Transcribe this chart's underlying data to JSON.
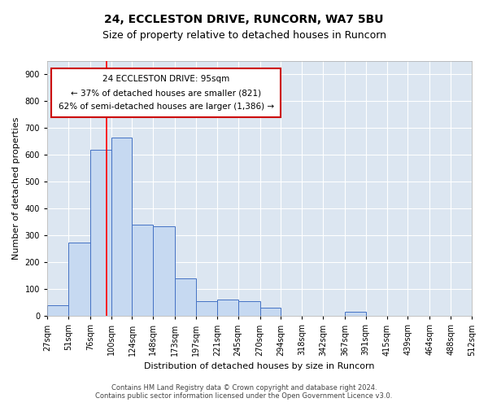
{
  "title_line1": "24, ECCLESTON DRIVE, RUNCORN, WA7 5BU",
  "title_line2": "Size of property relative to detached houses in Runcorn",
  "xlabel": "Distribution of detached houses by size in Runcorn",
  "ylabel": "Number of detached properties",
  "footnote1": "Contains HM Land Registry data © Crown copyright and database right 2024.",
  "footnote2": "Contains public sector information licensed under the Open Government Licence v3.0.",
  "bin_edges": [
    27,
    51,
    76,
    100,
    124,
    148,
    173,
    197,
    221,
    245,
    270,
    294,
    318,
    342,
    367,
    391,
    415,
    439,
    464,
    488,
    512
  ],
  "bar_heights": [
    40,
    275,
    620,
    665,
    340,
    335,
    140,
    55,
    60,
    55,
    30,
    0,
    0,
    0,
    15,
    0,
    0,
    0,
    0,
    0
  ],
  "bar_color": "#c6d9f1",
  "bar_edge_color": "#4472c4",
  "bg_color": "#dce6f1",
  "grid_color": "#ffffff",
  "red_line_x": 95,
  "annotation_text_line1": "24 ECCLESTON DRIVE: 95sqm",
  "annotation_text_line2": "← 37% of detached houses are smaller (821)",
  "annotation_text_line3": "62% of semi-detached houses are larger (1,386) →",
  "annotation_box_color": "#ffffff",
  "annotation_box_edge_color": "#cc0000",
  "ylim": [
    0,
    950
  ],
  "yticks": [
    0,
    100,
    200,
    300,
    400,
    500,
    600,
    700,
    800,
    900
  ],
  "title1_fontsize": 10,
  "title2_fontsize": 9,
  "ylabel_fontsize": 8,
  "xlabel_fontsize": 8,
  "footnote_fontsize": 6,
  "tick_fontsize": 7,
  "annot_fontsize": 7.5
}
